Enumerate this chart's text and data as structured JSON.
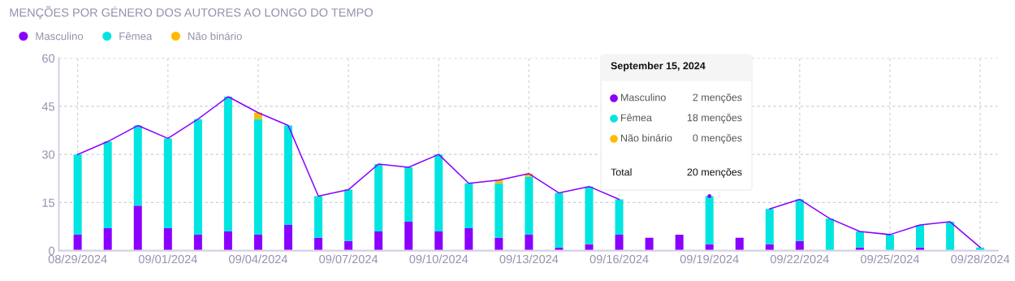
{
  "chart_data": {
    "type": "bar",
    "stacked": true,
    "title": "MENÇÕES POR GÉNERO DOS AUTORES AO LONGO DO TEMPO",
    "x": [
      "2024-08-29",
      "2024-08-30",
      "2024-08-31",
      "2024-09-01",
      "2024-09-02",
      "2024-09-03",
      "2024-09-04",
      "2024-09-05",
      "2024-09-06",
      "2024-09-07",
      "2024-09-08",
      "2024-09-09",
      "2024-09-10",
      "2024-09-11",
      "2024-09-12",
      "2024-09-13",
      "2024-09-14",
      "2024-09-15",
      "2024-09-16",
      "2024-09-17",
      "2024-09-18",
      "2024-09-19",
      "2024-09-20",
      "2024-09-21",
      "2024-09-22",
      "2024-09-23",
      "2024-09-24",
      "2024-09-25",
      "2024-09-26",
      "2024-09-27",
      "2024-09-28"
    ],
    "series": [
      {
        "name": "Masculino",
        "color": "#8a00ff",
        "values": [
          5,
          7,
          14,
          7,
          5,
          6,
          5,
          8,
          4,
          3,
          6,
          9,
          6,
          7,
          4,
          5,
          1,
          2,
          5,
          4,
          5,
          2,
          4,
          2,
          3,
          0,
          1,
          0,
          1,
          0,
          0
        ]
      },
      {
        "name": "Fêmea",
        "color": "#00e5e0",
        "values": [
          25,
          27,
          25,
          28,
          36,
          42,
          36,
          31,
          13,
          16,
          21,
          17,
          24,
          14,
          17,
          18,
          17,
          18,
          11,
          null,
          null,
          15,
          null,
          11,
          13,
          10,
          5,
          5,
          7,
          9,
          1
        ]
      },
      {
        "name": "Não binário",
        "color": "#ffba00",
        "values": [
          0,
          0,
          0,
          0,
          0,
          0,
          2,
          0,
          0,
          0,
          0,
          0,
          0,
          0,
          1,
          1,
          0,
          0,
          0,
          null,
          null,
          0,
          null,
          0,
          0,
          0,
          0,
          0,
          0,
          0,
          0
        ]
      },
      {
        "type": "line",
        "color": "#8a00ff",
        "values": [
          30,
          34,
          39,
          35,
          41,
          48,
          43,
          39,
          17,
          19,
          27,
          26,
          30,
          21,
          22,
          24,
          18,
          20,
          16,
          null,
          null,
          17,
          null,
          13,
          16,
          10,
          6,
          5,
          8,
          9,
          1
        ]
      }
    ],
    "xlim": [
      "2024-08-28T09:00",
      "2024-09-28T14:00"
    ],
    "xticks": [
      {
        "value": "2024-08-29",
        "label": "08/29/2024"
      },
      {
        "value": "2024-09-01",
        "label": "09/01/2024"
      },
      {
        "value": "2024-09-04",
        "label": "09/04/2024"
      },
      {
        "value": "2024-09-07",
        "label": "09/07/2024"
      },
      {
        "value": "2024-09-10",
        "label": "09/10/2024"
      },
      {
        "value": "2024-09-13",
        "label": "09/13/2024"
      },
      {
        "value": "2024-09-16",
        "label": "09/16/2024"
      },
      {
        "value": "2024-09-19",
        "label": "09/19/2024"
      },
      {
        "value": "2024-09-22",
        "label": "09/22/2024"
      },
      {
        "value": "2024-09-25",
        "label": "09/25/2024"
      },
      {
        "value": "2024-09-28",
        "label": "09/28/2024"
      }
    ],
    "ylim": [
      0,
      60
    ],
    "yticks": [
      0,
      15,
      30,
      45,
      60
    ],
    "grid": true,
    "legend": "top left",
    "annotations": [
      "September 15, 2024",
      "2 menções",
      "18 menções",
      "0 menções",
      "Total",
      "20 menções"
    ]
  }
}
